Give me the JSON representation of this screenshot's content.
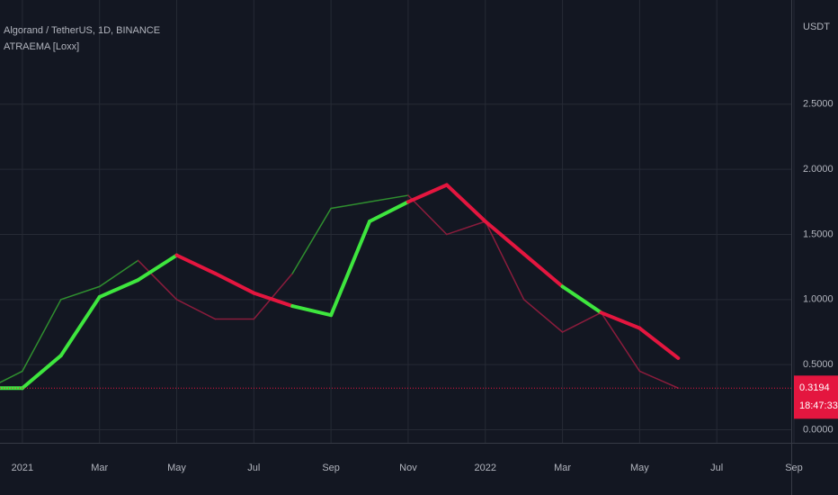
{
  "chart_data": {
    "type": "line",
    "title": "Algorand / TetherUS, 1D, BINANCE",
    "subtitle": "ATRAEMA [Loxx]",
    "y_axis_label": "USDT",
    "x": [
      "2020-12",
      "2021-01",
      "2021-02",
      "2021-03",
      "2021-04",
      "2021-05",
      "2021-06",
      "2021-07",
      "2021-08",
      "2021-09",
      "2021-10",
      "2021-11",
      "2021-12",
      "2022-01",
      "2022-02",
      "2022-03",
      "2022-04",
      "2022-05",
      "2022-06"
    ],
    "series": [
      {
        "values": [
          0.3,
          0.45,
          1.0,
          1.1,
          1.3,
          1.0,
          0.85,
          0.85,
          1.2,
          1.7,
          1.75,
          1.8,
          1.5,
          1.6,
          1.0,
          0.75,
          0.9,
          0.45,
          0.32
        ],
        "colors": [
          "#2f8f2f",
          "#2f8f2f",
          "#2f8f2f",
          "#2f8f2f",
          "#8a1c3c",
          "#8a1c3c",
          "#8a1c3c",
          "#8a1c3c",
          "#2f8f2f",
          "#2f8f2f",
          "#2f8f2f",
          "#8a1c3c",
          "#8a1c3c",
          "#8a1c3c",
          "#8a1c3c",
          "#8a1c3c",
          "#8a1c3c",
          "#8a1c3c",
          "#8a1c3c"
        ]
      },
      {
        "name": "ATRAEMA [Loxx]",
        "values": [
          0.32,
          0.32,
          0.57,
          1.02,
          1.15,
          1.34,
          1.2,
          1.05,
          0.95,
          0.88,
          1.6,
          1.75,
          1.88,
          1.6,
          1.35,
          1.1,
          0.9,
          0.78,
          0.55
        ],
        "colors": [
          "#3ee63e",
          "#3ee63e",
          "#3ee63e",
          "#3ee63e",
          "#3ee63e",
          "#e4163f",
          "#e4163f",
          "#e4163f",
          "#3ee63e",
          "#3ee63e",
          "#3ee63e",
          "#e4163f",
          "#e4163f",
          "#e4163f",
          "#e4163f",
          "#3ee63e",
          "#e4163f",
          "#e4163f",
          "#e4163f"
        ]
      }
    ],
    "xlim": [
      "2020-12",
      "2022-09"
    ],
    "xticks": [
      {
        "value": "2021-01",
        "label": "2021"
      },
      {
        "value": "2021-03",
        "label": "Mar"
      },
      {
        "value": "2021-05",
        "label": "May"
      },
      {
        "value": "2021-07",
        "label": "Jul"
      },
      {
        "value": "2021-09",
        "label": "Sep"
      },
      {
        "value": "2021-11",
        "label": "Nov"
      },
      {
        "value": "2022-01",
        "label": "2022"
      },
      {
        "value": "2022-03",
        "label": "Mar"
      },
      {
        "value": "2022-05",
        "label": "May"
      },
      {
        "value": "2022-07",
        "label": "Jul"
      },
      {
        "value": "2022-09",
        "label": "Sep"
      }
    ],
    "ylim": [
      -0.1,
      3.3
    ],
    "yticks": [
      {
        "value": 0,
        "label": "0.0000"
      },
      {
        "value": 0.5,
        "label": "0.5000"
      },
      {
        "value": 1,
        "label": "1.0000"
      },
      {
        "value": 1.5,
        "label": "1.5000"
      },
      {
        "value": 2,
        "label": "2.0000"
      },
      {
        "value": 2.5,
        "label": "2.5000"
      }
    ],
    "grid": true,
    "last_price": {
      "value": 0.3194,
      "time": "18:47:33",
      "color": "#e4163f"
    }
  }
}
